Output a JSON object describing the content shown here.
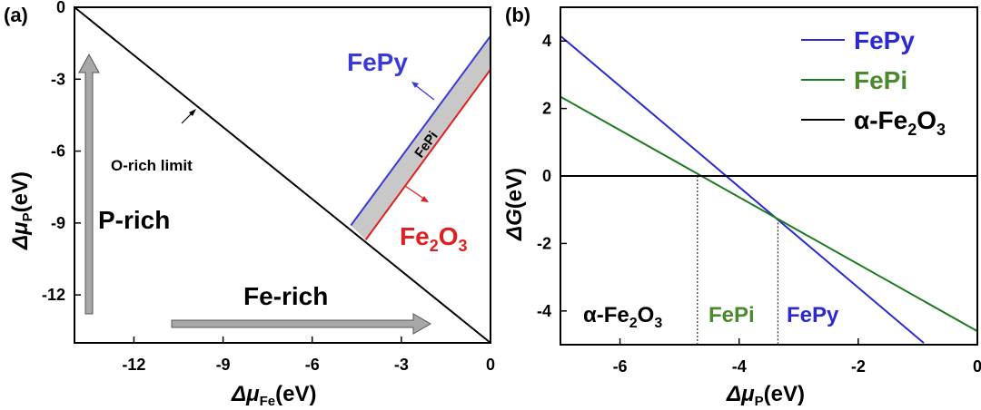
{
  "chart_data": [
    {
      "panel_label": "(a)",
      "type": "line",
      "xlabel_prefix": "Δμ",
      "xlabel_sub": "Fe",
      "xlabel_suffix": "(eV)",
      "ylabel_prefix": "Δμ",
      "ylabel_sub": "P",
      "ylabel_suffix": "(eV)",
      "xlim": [
        -14.0,
        0
      ],
      "ylim": [
        -14.0,
        0
      ],
      "xticks": [
        -12,
        -9,
        -6,
        -3,
        0
      ],
      "yticks": [
        0,
        -3,
        -6,
        -9,
        -12
      ],
      "series": [
        {
          "name": "O-rich limit",
          "color": "#000000",
          "x": [
            -14.0,
            0
          ],
          "y": [
            0,
            -14.0
          ]
        },
        {
          "name": "FePy",
          "color": "#3a3ad8",
          "x": [
            -4.7,
            0
          ],
          "y": [
            -9.1,
            -1.2
          ]
        },
        {
          "name": "Fe2O3",
          "color": "#e02020",
          "x": [
            -4.2,
            0
          ],
          "y": [
            -9.7,
            -2.6
          ]
        }
      ],
      "region_label": "FePi",
      "annotations": {
        "fepy_label": "FePy",
        "fe2o3_label_main": "Fe",
        "fe2o3_sub1": "2",
        "fe2o3_mid": "O",
        "fe2o3_sub2": "3",
        "o_rich": "O-rich limit",
        "p_rich": "P-rich",
        "fe_rich": "Fe-rich"
      }
    },
    {
      "panel_label": "(b)",
      "type": "line",
      "xlabel_prefix": "Δμ",
      "xlabel_sub": "P",
      "xlabel_suffix": "(eV)",
      "ylabel_prefix": "ΔG",
      "ylabel_suffix": "(eV)",
      "xlim": [
        -7,
        0
      ],
      "ylim": [
        -5,
        5
      ],
      "xticks": [
        -6,
        -4,
        -2,
        0
      ],
      "yticks": [
        4,
        2,
        0,
        -2,
        -4
      ],
      "series": [
        {
          "name": "FePy",
          "color": "#2a2ad0",
          "x": [
            -7,
            -0.9
          ],
          "y": [
            4.15,
            -4.95
          ]
        },
        {
          "name": "FePi",
          "color": "#1e7a1e",
          "x": [
            -7,
            0
          ],
          "y": [
            2.35,
            -4.6
          ]
        },
        {
          "name": "α-Fe2O3",
          "color": "#000000",
          "x": [
            -7,
            0
          ],
          "y": [
            0,
            0
          ]
        }
      ],
      "legend": {
        "placement": "top-right",
        "items": [
          {
            "text": "FePy",
            "color": "#2a2ad0"
          },
          {
            "text": "FePi",
            "color": "#4a8a2a"
          },
          {
            "text_main": "α-Fe",
            "sub1": "2",
            "mid": "O",
            "sub2": "3",
            "color": "#000000"
          }
        ]
      },
      "boundaries": [
        -4.7,
        -3.35
      ],
      "region_labels": {
        "fe2o3_main": "α-Fe",
        "fe2o3_sub1": "2",
        "fe2o3_mid": "O",
        "fe2o3_sub2": "3",
        "fepi": "FePi",
        "fepy": "FePy"
      }
    }
  ]
}
